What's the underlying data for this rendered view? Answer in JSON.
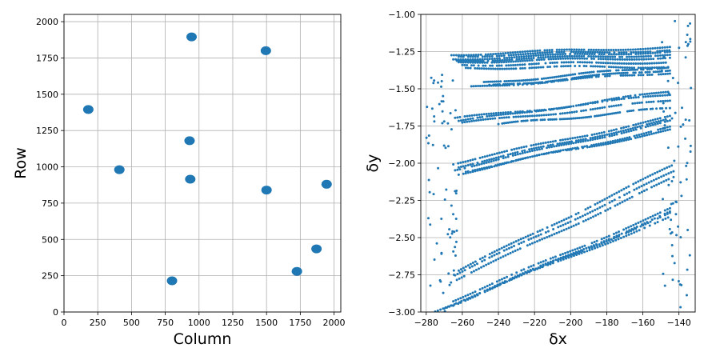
{
  "chart_data": [
    {
      "type": "scatter",
      "xlabel": "Column",
      "ylabel": "Row",
      "xlim": [
        0,
        2050
      ],
      "ylim": [
        0,
        2050
      ],
      "xticks": [
        0,
        250,
        500,
        750,
        1000,
        1250,
        1500,
        1750,
        2000
      ],
      "yticks": [
        0,
        250,
        500,
        750,
        1000,
        1250,
        1500,
        1750,
        2000
      ],
      "grid": true,
      "color": "#1f77b4",
      "points": [
        {
          "x": 180,
          "y": 1395
        },
        {
          "x": 410,
          "y": 980
        },
        {
          "x": 800,
          "y": 215
        },
        {
          "x": 930,
          "y": 1180
        },
        {
          "x": 935,
          "y": 915
        },
        {
          "x": 945,
          "y": 1895
        },
        {
          "x": 1495,
          "y": 1800
        },
        {
          "x": 1500,
          "y": 840
        },
        {
          "x": 1725,
          "y": 280
        },
        {
          "x": 1870,
          "y": 435
        },
        {
          "x": 1945,
          "y": 880
        }
      ]
    },
    {
      "type": "scatter",
      "xlabel": "δx",
      "ylabel": "δy",
      "xlim": [
        -283,
        -131
      ],
      "ylim": [
        -3.0,
        -1.0
      ],
      "xticks": [
        -280,
        -260,
        -240,
        -220,
        -200,
        -180,
        -160,
        -140
      ],
      "yticks": [
        -3.0,
        -2.75,
        -2.5,
        -2.25,
        -2.0,
        -1.75,
        -1.5,
        -1.25,
        -1.0
      ],
      "ytick_labels": [
        "−3.00",
        "−2.75",
        "−2.50",
        "−2.25",
        "−2.00",
        "−1.75",
        "−1.50",
        "−1.25",
        "−1.00"
      ],
      "xtick_labels": [
        "−280",
        "−260",
        "−240",
        "−220",
        "−200",
        "−180",
        "−160",
        "−140"
      ],
      "grid": true,
      "color": "#1f77b4",
      "tracks": [
        {
          "x": [
            -265,
            -145
          ],
          "y": [
            -1.3,
            -1.25
          ]
        },
        {
          "x": [
            -263,
            -145
          ],
          "y": [
            -1.31,
            -1.27
          ]
        },
        {
          "x": [
            -262,
            -145
          ],
          "y": [
            -1.32,
            -1.29
          ]
        },
        {
          "x": [
            -262,
            -144
          ],
          "y": [
            -1.28,
            -1.24
          ]
        },
        {
          "x": [
            -260,
            -146
          ],
          "y": [
            -1.34,
            -1.32
          ]
        },
        {
          "x": [
            -258,
            -146
          ],
          "y": [
            -1.36,
            -1.35
          ]
        },
        {
          "x": [
            -266,
            -145
          ],
          "y": [
            -1.27,
            -1.22
          ]
        },
        {
          "x": [
            -245,
            -145
          ],
          "y": [
            -1.48,
            -1.37
          ]
        },
        {
          "x": [
            -255,
            -145
          ],
          "y": [
            -1.49,
            -1.39
          ]
        },
        {
          "x": [
            -248,
            -146
          ],
          "y": [
            -1.46,
            -1.35
          ]
        },
        {
          "x": [
            -262,
            -146
          ],
          "y": [
            -1.72,
            -1.52
          ]
        },
        {
          "x": [
            -264,
            -145
          ],
          "y": [
            -1.7,
            -1.54
          ]
        },
        {
          "x": [
            -260,
            -145
          ],
          "y": [
            -1.73,
            -1.58
          ]
        },
        {
          "x": [
            -240,
            -145
          ],
          "y": [
            -1.74,
            -1.63
          ]
        },
        {
          "x": [
            -265,
            -145
          ],
          "y": [
            -2.0,
            -1.69
          ]
        },
        {
          "x": [
            -264,
            -145
          ],
          "y": [
            -2.04,
            -1.72
          ]
        },
        {
          "x": [
            -262,
            -145
          ],
          "y": [
            -2.07,
            -1.76
          ]
        },
        {
          "x": [
            -262,
            -146
          ],
          "y": [
            -2.02,
            -1.71
          ]
        },
        {
          "x": [
            -258,
            -145
          ],
          "y": [
            -2.05,
            -1.78
          ]
        },
        {
          "x": [
            -264,
            -143
          ],
          "y": [
            -2.75,
            -2.06
          ]
        },
        {
          "x": [
            -263,
            -143
          ],
          "y": [
            -2.78,
            -2.1
          ]
        },
        {
          "x": [
            -262,
            -144
          ],
          "y": [
            -2.72,
            -2.02
          ]
        },
        {
          "x": [
            -265,
            -145
          ],
          "y": [
            -2.92,
            -2.31
          ]
        },
        {
          "x": [
            -265,
            -145
          ],
          "y": [
            -2.95,
            -2.34
          ]
        },
        {
          "x": [
            -275,
            -146
          ],
          "y": [
            -2.99,
            -2.37
          ]
        },
        {
          "x": [
            -270,
            -145
          ],
          "y": [
            -2.97,
            -2.33
          ]
        }
      ],
      "scatter_clusters": [
        {
          "x": [
            -280,
            -263
          ],
          "y": [
            -3.0,
            -1.4
          ]
        },
        {
          "x": [
            -150,
            -133
          ],
          "y": [
            -3.0,
            -1.0
          ]
        }
      ]
    }
  ]
}
